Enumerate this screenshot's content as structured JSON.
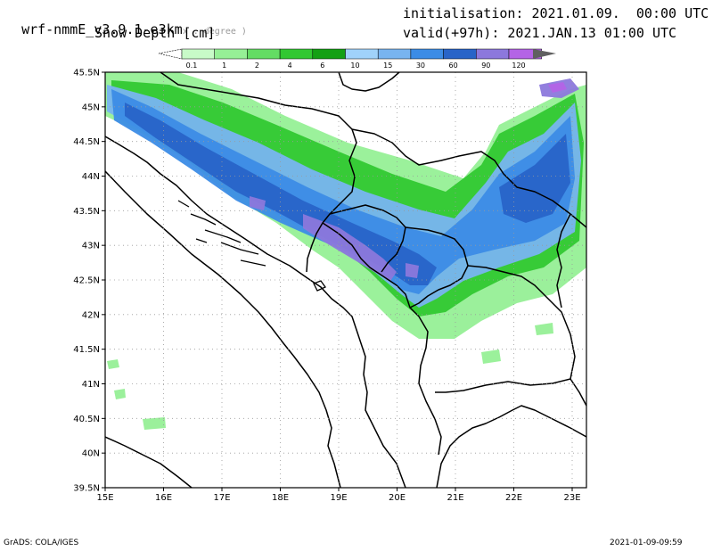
{
  "header": {
    "model": "wrf-nmmE_v3.9.1-e3km",
    "model_suffix": "x . degree )",
    "field": "Snow Depth [cm]",
    "init": "initialisation: 2021.01.09.  00:00 UTC",
    "valid": "valid(+97h): 2021.JAN.13 01:00 UTC"
  },
  "colorbar": {
    "labels": [
      "0.1",
      "1",
      "2",
      "4",
      "6",
      "10",
      "15",
      "30",
      "60",
      "90",
      "120"
    ],
    "colors": [
      "#c8fac8",
      "#96f096",
      "#64dc64",
      "#32c832",
      "#14a014",
      "#a0d2fa",
      "#78b4f0",
      "#3c8ce6",
      "#2864c8",
      "#8c78dc",
      "#b464e6"
    ],
    "over_color": "#606060"
  },
  "map": {
    "lat_labels": [
      "45.5N",
      "45N",
      "44.5N",
      "44N",
      "43.5N",
      "43N",
      "42.5N",
      "42N",
      "41.5N",
      "41N",
      "40.5N",
      "40N",
      "39.5N"
    ],
    "lon_labels": [
      "15E",
      "16E",
      "17E",
      "18E",
      "19E",
      "20E",
      "21E",
      "22E",
      "23E"
    ],
    "land_color": "#ffffff",
    "border_color": "#000000",
    "grid_color": "#9a9a9a"
  },
  "footer": {
    "left": "GrADS: COLA/IGES",
    "right": "2021-01-09-09:59"
  }
}
